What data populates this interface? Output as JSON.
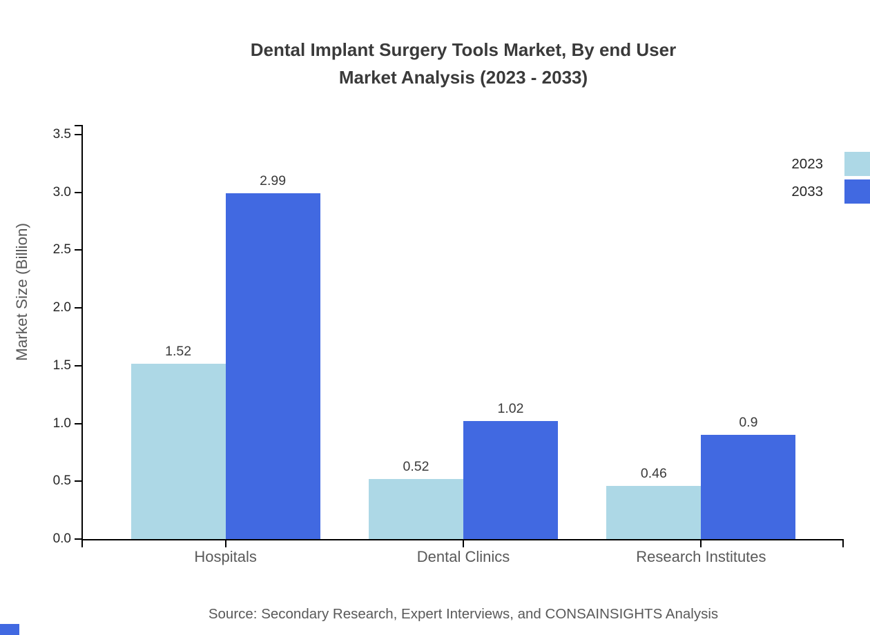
{
  "title": {
    "line1": "Dental Implant Surgery Tools Market, By end User",
    "line2": "Market Analysis (2023 - 2033)"
  },
  "source": "Source: Secondary Research, Expert Interviews, and CONSAINSIGHTS Analysis",
  "chart_data": {
    "type": "bar",
    "categories": [
      "Hospitals",
      "Dental Clinics",
      "Research Institutes"
    ],
    "series": [
      {
        "name": "2023",
        "color": "#ADD8E6",
        "values": [
          1.52,
          0.52,
          0.46
        ]
      },
      {
        "name": "2033",
        "color": "#4169E1",
        "values": [
          2.99,
          1.02,
          0.9
        ]
      }
    ],
    "value_labels": [
      "1.52",
      "2.99",
      "0.52",
      "1.02",
      "0.46",
      "0.9"
    ],
    "title": "Dental Implant Surgery Tools Market, By end User Market Analysis (2023 - 2033)",
    "xlabel": "",
    "ylabel": "Market Size (Billion)",
    "ylim": [
      0,
      3.58
    ],
    "yticks": [
      0.0,
      0.5,
      1.0,
      1.5,
      2.0,
      2.5,
      3.0,
      3.5
    ],
    "grid": false,
    "legend_position": "upper-right, swatches clipped at right edge",
    "bar_value_labels_shown": true
  },
  "legend": {
    "items": [
      {
        "label": "2023",
        "color": "#ADD8E6"
      },
      {
        "label": "2033",
        "color": "#4169E1"
      }
    ]
  },
  "colors": {
    "background": "#ffffff",
    "series_2023": "#ADD8E6",
    "series_2033": "#4169E1",
    "axis": "#000000",
    "title_text": "#3a3a3a",
    "tick_text": "#262626",
    "muted_text": "#595959"
  }
}
